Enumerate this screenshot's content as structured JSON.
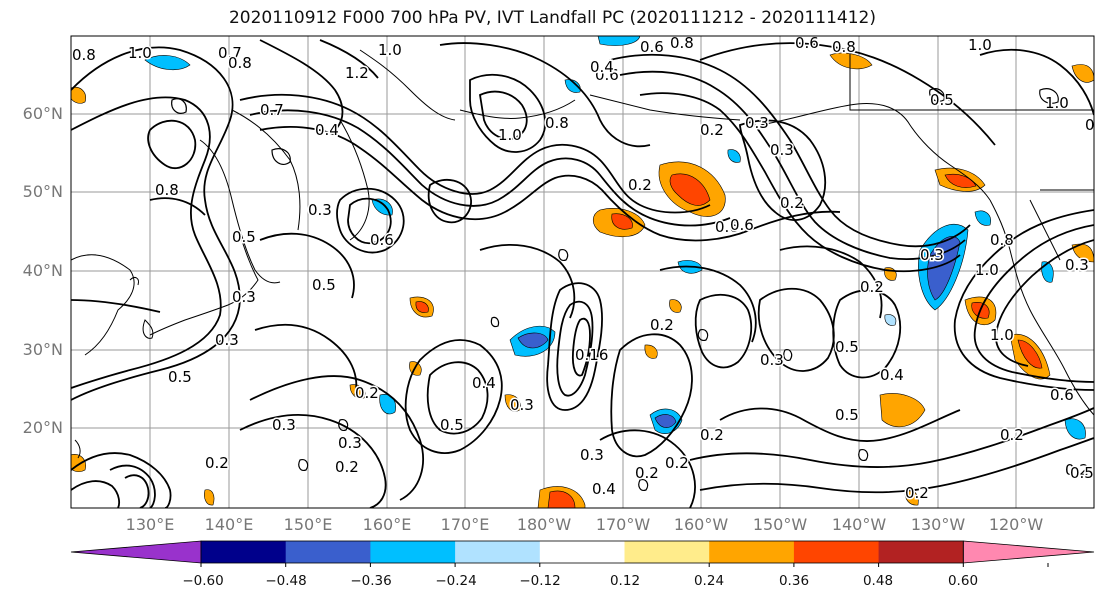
{
  "title": "2020110912 F000 700 hPa PV, IVT Landfall PC (2020111212 - 2020111412)",
  "lat_labels": [
    "60°N",
    "50°N",
    "40°N",
    "30°N",
    "20°N"
  ],
  "lon_labels": [
    "130°E",
    "140°E",
    "150°E",
    "160°E",
    "170°E",
    "180°W",
    "170°W",
    "160°W",
    "150°W",
    "140°W",
    "130°W",
    "120°W"
  ],
  "colorbar": {
    "colors": [
      "#9932cc",
      "#00008b",
      "#3a5fcd",
      "#00bfff",
      "#b0e2ff",
      "#ffffff",
      "#ffec8b",
      "#ffa500",
      "#ff4500",
      "#b22222",
      "#ff88b0"
    ],
    "tick_labels": [
      "−0.60",
      "−0.48",
      "−0.36",
      "−0.24",
      "−0.12",
      "0.12",
      "0.24",
      "0.36",
      "0.48",
      "0.60"
    ]
  },
  "contour_labels": [
    "1.0",
    "0.7",
    "0.8",
    "1.2",
    "1.0",
    "0.8",
    "0.6",
    "0.8",
    "0.6",
    "0.8",
    "1.0",
    "0.6",
    "0.7",
    "0.4",
    "1.0",
    "0.8",
    "0.3",
    "0.4",
    "0.2",
    "0.6",
    "0.3",
    "0.5",
    "0.6",
    "0.8",
    "0.5",
    "0.3",
    "0.5",
    "0.3",
    "0.2",
    "0.3",
    "0.2",
    "0.3",
    "0.16",
    "0.4",
    "0.5",
    "0.3",
    "0.2",
    "0.3",
    "0.2",
    "0.2",
    "0.2",
    "0.4",
    "0.3",
    "0.5",
    "0.4",
    "0.5",
    "0.2",
    "1.0",
    "0.6",
    "0.3",
    "0.2",
    "0.2",
    "1.0",
    "0.8",
    "1.0",
    "0.3",
    "0.5",
    "0.2",
    "0.6",
    "0.2",
    "0.2",
    "0.5",
    "0.6",
    "0.3",
    "0.2"
  ]
}
